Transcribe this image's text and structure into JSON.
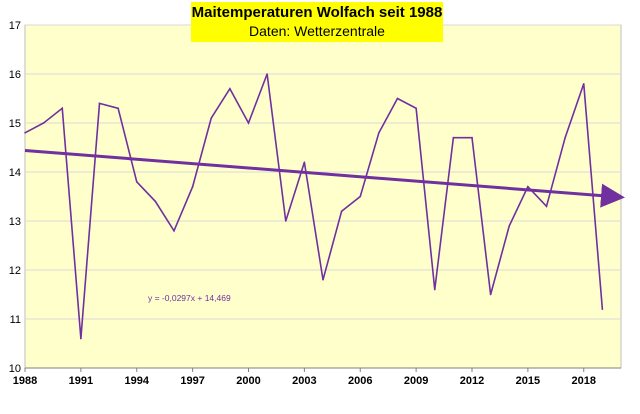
{
  "colors": {
    "plot_bg": "#ffffcc",
    "series": "#7030a0",
    "trend": "#7030a0",
    "title_bg": "#ffff00",
    "grid": "#d9d9d9",
    "axis_text": "#000000"
  },
  "chart_data": {
    "type": "line",
    "title": "Maitemperaturen Wolfach seit 1988",
    "subtitle": "Daten: Wetterzentrale",
    "xlabel": "",
    "ylabel": "",
    "xlim": [
      1988,
      2020
    ],
    "ylim": [
      10,
      17
    ],
    "grid": true,
    "x_tick_labels": [
      "1988",
      "1991",
      "1994",
      "1997",
      "2000",
      "2003",
      "2006",
      "2009",
      "2012",
      "2015",
      "2018"
    ],
    "y_tick_labels": [
      "10",
      "11",
      "12",
      "13",
      "14",
      "15",
      "16",
      "17"
    ],
    "x": [
      1988,
      1989,
      1990,
      1991,
      1992,
      1993,
      1994,
      1995,
      1996,
      1997,
      1998,
      1999,
      2000,
      2001,
      2002,
      2003,
      2004,
      2005,
      2006,
      2007,
      2008,
      2009,
      2010,
      2011,
      2012,
      2013,
      2014,
      2015,
      2016,
      2017,
      2018,
      2019
    ],
    "series": [
      {
        "values": [
          14.8,
          15.0,
          15.3,
          10.6,
          15.4,
          15.3,
          13.8,
          13.4,
          12.8,
          13.7,
          15.1,
          15.7,
          15.0,
          16.0,
          13.0,
          14.2,
          11.8,
          13.2,
          13.5,
          14.8,
          15.5,
          15.3,
          11.6,
          14.7,
          14.7,
          11.5,
          12.9,
          13.7,
          13.3,
          14.7,
          15.8,
          11.2
        ]
      }
    ],
    "trendline": {
      "equation": "y = -0,0297x + 14,469",
      "slope": -0.0297,
      "intercept": 14.469
    }
  }
}
